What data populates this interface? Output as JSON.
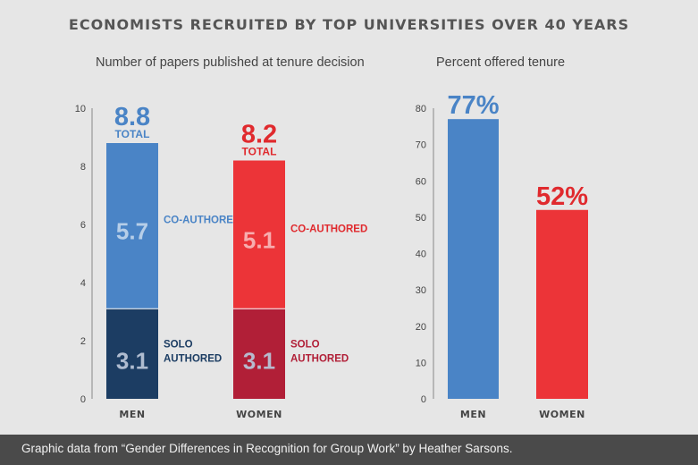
{
  "title": "ECONOMISTS RECRUITED BY TOP UNIVERSITIES OVER 40 YEARS",
  "colors": {
    "men_coauthored": "#4a84c6",
    "men_solo": "#1c3d63",
    "women_coauthored": "#ec3438",
    "women_solo": "#b11f37",
    "men_label": "#4a84c6",
    "women_label": "#e02a2e",
    "men_solo_label": "#1c3d63",
    "women_solo_label": "#b11f37"
  },
  "footer": "Graphic data from “Gender Differences in Recognition for Group Work” by Heather Sarsons.",
  "chart_data": [
    {
      "type": "bar",
      "stacked": true,
      "title": "Number of papers published at tenure decision",
      "categories": [
        "MEN",
        "WOMEN"
      ],
      "ylim": [
        0,
        10
      ],
      "yticks": [
        0,
        2,
        4,
        6,
        8,
        10
      ],
      "series": [
        {
          "name": "SOLO AUTHORED",
          "values": [
            3.1,
            3.1
          ],
          "value_labels": [
            "3.1",
            "3.1"
          ]
        },
        {
          "name": "CO-AUTHORED",
          "values": [
            5.7,
            5.1
          ],
          "value_labels": [
            "5.7",
            "5.1"
          ]
        }
      ],
      "totals": [
        8.8,
        8.2
      ],
      "total_labels": [
        "8.8",
        "8.2"
      ],
      "total_caption": "TOTAL",
      "grid": false
    },
    {
      "type": "bar",
      "title": "Percent offered tenure",
      "categories": [
        "MEN",
        "WOMEN"
      ],
      "values": [
        77,
        52
      ],
      "value_labels": [
        "77%",
        "52%"
      ],
      "ylim": [
        0,
        80
      ],
      "yticks": [
        0,
        10,
        20,
        30,
        40,
        50,
        60,
        70,
        80
      ],
      "grid": false
    }
  ]
}
